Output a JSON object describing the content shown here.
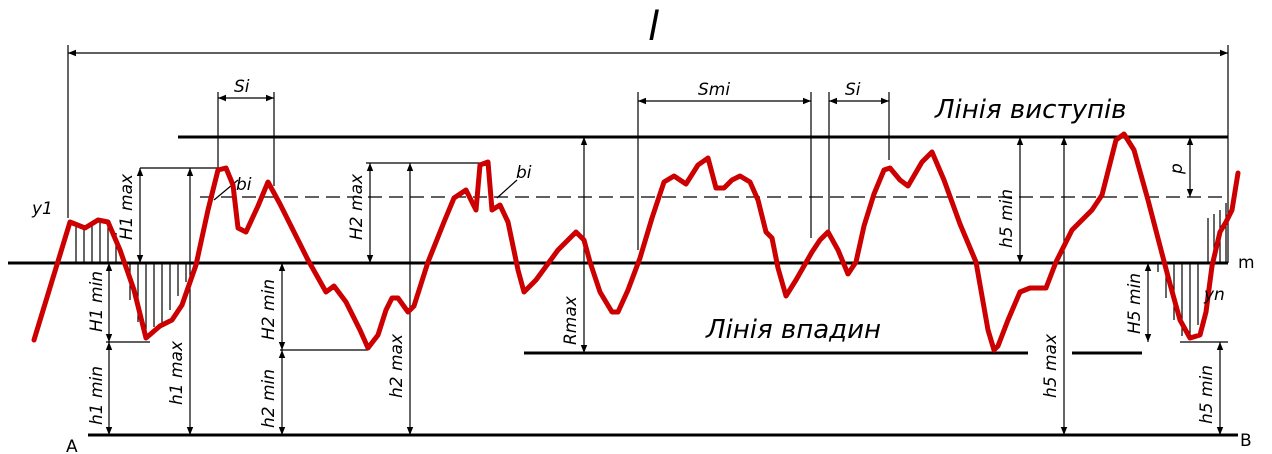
{
  "diagram": {
    "length_label": "l",
    "peaks_line_label": "Лінія виступів",
    "valleys_line_label": "Лінія впадин",
    "mean_line_label": "m",
    "point_a": "A",
    "point_b": "B",
    "y1_label": "y1",
    "yn_label": "yn",
    "p_label": "p",
    "b_left": "bi",
    "b_mid": "bi",
    "s_left": "Si",
    "s_mid": "Smi",
    "s_right": "Si",
    "rmax_label": "Rmax",
    "H1max": "H1 max",
    "H1min": "H1 min",
    "h1max": "h1 max",
    "h1min": "h1 min",
    "H2max": "H2 max",
    "H2min": "H2 min",
    "h2max": "h2 max",
    "h2min": "h2 min",
    "h5min_upper": "h5 min",
    "H5min": "H5 min",
    "h5max": "h5 max",
    "h5min_lower": "h5 min",
    "profile_color": "#cc0000",
    "line_color": "#000000"
  }
}
